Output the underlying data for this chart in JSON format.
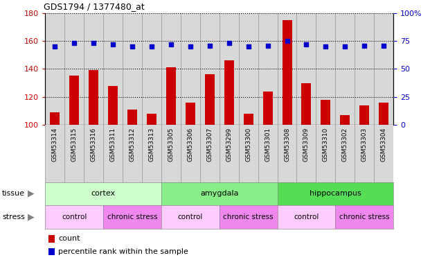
{
  "title": "GDS1794 / 1377480_at",
  "samples": [
    "GSM53314",
    "GSM53315",
    "GSM53316",
    "GSM53311",
    "GSM53312",
    "GSM53313",
    "GSM53305",
    "GSM53306",
    "GSM53307",
    "GSM53299",
    "GSM53300",
    "GSM53301",
    "GSM53308",
    "GSM53309",
    "GSM53310",
    "GSM53302",
    "GSM53303",
    "GSM53304"
  ],
  "counts": [
    109,
    135,
    139,
    128,
    111,
    108,
    141,
    116,
    136,
    146,
    108,
    124,
    175,
    130,
    118,
    107,
    114,
    116
  ],
  "percentiles": [
    70,
    73,
    73,
    72,
    70,
    70,
    72,
    70,
    71,
    73,
    70,
    71,
    75,
    72,
    70,
    70,
    71,
    71
  ],
  "ylim_left": [
    100,
    180
  ],
  "ylim_right": [
    0,
    100
  ],
  "yticks_left": [
    100,
    120,
    140,
    160,
    180
  ],
  "yticks_right": [
    0,
    25,
    50,
    75,
    100
  ],
  "bar_color": "#cc0000",
  "dot_color": "#0000cc",
  "tissue_groups": [
    {
      "label": "cortex",
      "start": 0,
      "end": 6,
      "color": "#ccffcc"
    },
    {
      "label": "amygdala",
      "start": 6,
      "end": 12,
      "color": "#88ee88"
    },
    {
      "label": "hippocampus",
      "start": 12,
      "end": 18,
      "color": "#55dd55"
    }
  ],
  "stress_groups": [
    {
      "label": "control",
      "start": 0,
      "end": 3,
      "color": "#ffccff"
    },
    {
      "label": "chronic stress",
      "start": 3,
      "end": 6,
      "color": "#ee88ee"
    },
    {
      "label": "control",
      "start": 6,
      "end": 9,
      "color": "#ffccff"
    },
    {
      "label": "chronic stress",
      "start": 9,
      "end": 12,
      "color": "#ee88ee"
    },
    {
      "label": "control",
      "start": 12,
      "end": 15,
      "color": "#ffccff"
    },
    {
      "label": "chronic stress",
      "start": 15,
      "end": 18,
      "color": "#ee88ee"
    }
  ],
  "plot_bg": "#d8d8d8",
  "tick_label_color_left": "#cc0000",
  "tick_label_color_right": "#0000cc",
  "bar_width": 0.5,
  "legend_items": [
    {
      "label": "count",
      "color": "#cc0000"
    },
    {
      "label": "percentile rank within the sample",
      "color": "#0000cc"
    }
  ]
}
